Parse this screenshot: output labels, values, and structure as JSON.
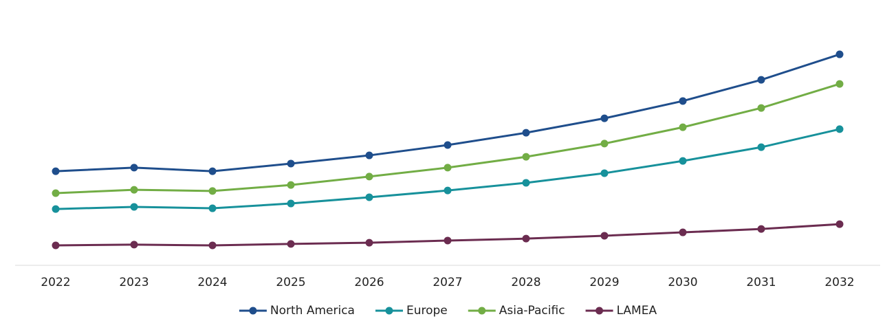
{
  "chart_data": {
    "type": "line",
    "categories": [
      "2022",
      "2023",
      "2024",
      "2025",
      "2026",
      "2027",
      "2028",
      "2029",
      "2030",
      "2031",
      "2032"
    ],
    "series": [
      {
        "name": "North America",
        "color": "#1f4e8c",
        "values": [
          39.1,
          40.6,
          39.1,
          42.3,
          45.7,
          50,
          55.1,
          61.1,
          68.3,
          77.1,
          87.7
        ]
      },
      {
        "name": "Europe",
        "color": "#17919b",
        "values": [
          23.4,
          24.3,
          23.7,
          25.7,
          28.3,
          31.1,
          34.3,
          38.3,
          43.4,
          49.1,
          56.6
        ]
      },
      {
        "name": "Asia-Pacific",
        "color": "#72ad45",
        "values": [
          30,
          31.4,
          30.9,
          33.4,
          36.9,
          40.6,
          45.1,
          50.6,
          57.4,
          65.4,
          75.4
        ]
      },
      {
        "name": "LAMEA",
        "color": "#6b2c50",
        "values": [
          8.3,
          8.6,
          8.3,
          8.9,
          9.4,
          10.3,
          11.1,
          12.3,
          13.7,
          15.1,
          17.1
        ]
      }
    ],
    "ylim": [
      0,
      100
    ],
    "legend": "bottom"
  }
}
